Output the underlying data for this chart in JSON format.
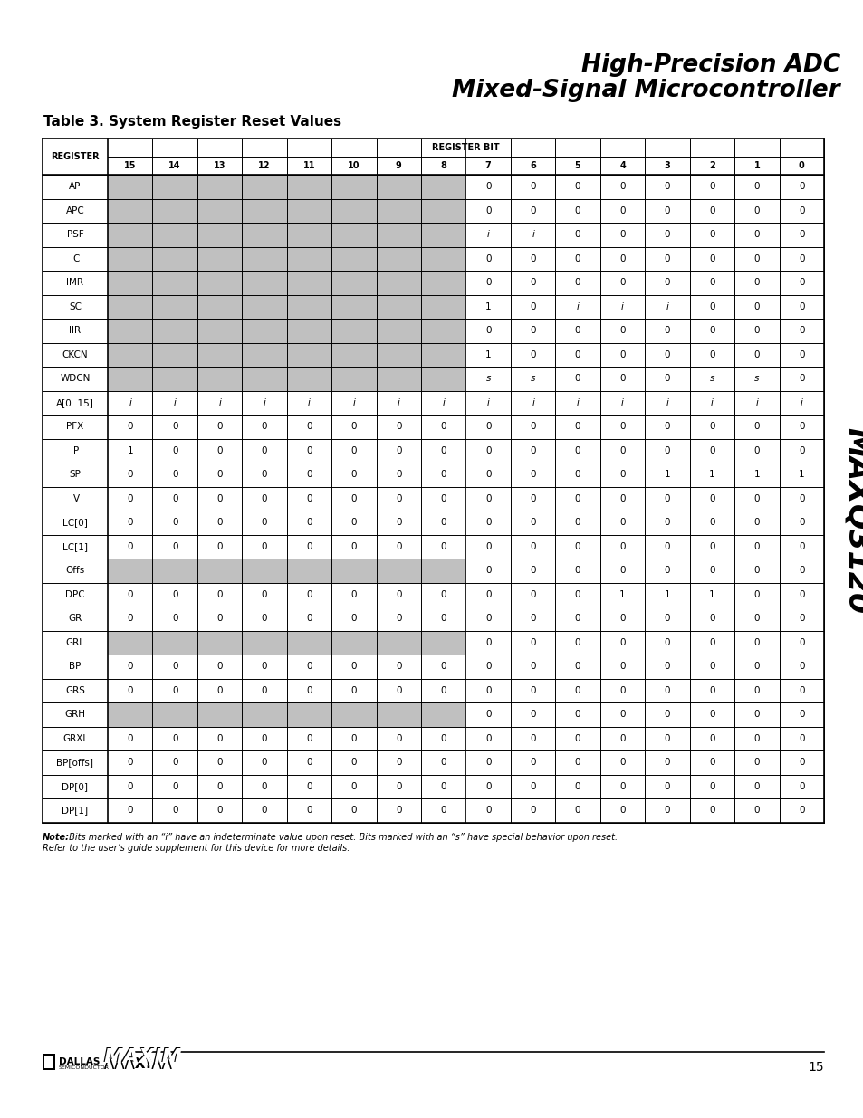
{
  "title_line1": "High-Precision ADC",
  "title_line2": "Mixed-Signal Microcontroller",
  "table_title": "Table 3. System Register Reset Values",
  "side_text": "MAXQ3120",
  "note_bold": "Note:",
  "note_rest1": " Bits marked with an “i” have an indeterminate value upon reset. Bits marked with an “s” have special behavior upon reset.",
  "note_line2": "Refer to the user’s guide supplement for this device for more details.",
  "page_number": "15",
  "register_bit_header": "REGISTER BIT",
  "registers": [
    {
      "name": "AP",
      "bits": [
        "",
        "",
        "",
        "",
        "",
        "",
        "",
        "",
        "0",
        "0",
        "0",
        "0",
        "0",
        "0",
        "0",
        "0"
      ],
      "gray": true
    },
    {
      "name": "APC",
      "bits": [
        "",
        "",
        "",
        "",
        "",
        "",
        "",
        "",
        "0",
        "0",
        "0",
        "0",
        "0",
        "0",
        "0",
        "0"
      ],
      "gray": true
    },
    {
      "name": "PSF",
      "bits": [
        "",
        "",
        "",
        "",
        "",
        "",
        "",
        "",
        "i",
        "i",
        "0",
        "0",
        "0",
        "0",
        "0",
        "0"
      ],
      "gray": true
    },
    {
      "name": "IC",
      "bits": [
        "",
        "",
        "",
        "",
        "",
        "",
        "",
        "",
        "0",
        "0",
        "0",
        "0",
        "0",
        "0",
        "0",
        "0"
      ],
      "gray": true
    },
    {
      "name": "IMR",
      "bits": [
        "",
        "",
        "",
        "",
        "",
        "",
        "",
        "",
        "0",
        "0",
        "0",
        "0",
        "0",
        "0",
        "0",
        "0"
      ],
      "gray": true
    },
    {
      "name": "SC",
      "bits": [
        "",
        "",
        "",
        "",
        "",
        "",
        "",
        "",
        "1",
        "0",
        "i",
        "i",
        "i",
        "0",
        "0",
        "0"
      ],
      "gray": true
    },
    {
      "name": "IIR",
      "bits": [
        "",
        "",
        "",
        "",
        "",
        "",
        "",
        "",
        "0",
        "0",
        "0",
        "0",
        "0",
        "0",
        "0",
        "0"
      ],
      "gray": true
    },
    {
      "name": "CKCN",
      "bits": [
        "",
        "",
        "",
        "",
        "",
        "",
        "",
        "",
        "1",
        "0",
        "0",
        "0",
        "0",
        "0",
        "0",
        "0"
      ],
      "gray": true
    },
    {
      "name": "WDCN",
      "bits": [
        "",
        "",
        "",
        "",
        "",
        "",
        "",
        "",
        "s",
        "s",
        "0",
        "0",
        "0",
        "s",
        "s",
        "0"
      ],
      "gray": true
    },
    {
      "name": "A[0..15]",
      "bits": [
        "i",
        "i",
        "i",
        "i",
        "i",
        "i",
        "i",
        "i",
        "i",
        "i",
        "i",
        "i",
        "i",
        "i",
        "i",
        "i"
      ],
      "gray": false
    },
    {
      "name": "PFX",
      "bits": [
        "0",
        "0",
        "0",
        "0",
        "0",
        "0",
        "0",
        "0",
        "0",
        "0",
        "0",
        "0",
        "0",
        "0",
        "0",
        "0"
      ],
      "gray": false
    },
    {
      "name": "IP",
      "bits": [
        "1",
        "0",
        "0",
        "0",
        "0",
        "0",
        "0",
        "0",
        "0",
        "0",
        "0",
        "0",
        "0",
        "0",
        "0",
        "0"
      ],
      "gray": false
    },
    {
      "name": "SP",
      "bits": [
        "0",
        "0",
        "0",
        "0",
        "0",
        "0",
        "0",
        "0",
        "0",
        "0",
        "0",
        "0",
        "1",
        "1",
        "1",
        "1"
      ],
      "gray": false
    },
    {
      "name": "IV",
      "bits": [
        "0",
        "0",
        "0",
        "0",
        "0",
        "0",
        "0",
        "0",
        "0",
        "0",
        "0",
        "0",
        "0",
        "0",
        "0",
        "0"
      ],
      "gray": false
    },
    {
      "name": "LC[0]",
      "bits": [
        "0",
        "0",
        "0",
        "0",
        "0",
        "0",
        "0",
        "0",
        "0",
        "0",
        "0",
        "0",
        "0",
        "0",
        "0",
        "0"
      ],
      "gray": false
    },
    {
      "name": "LC[1]",
      "bits": [
        "0",
        "0",
        "0",
        "0",
        "0",
        "0",
        "0",
        "0",
        "0",
        "0",
        "0",
        "0",
        "0",
        "0",
        "0",
        "0"
      ],
      "gray": false
    },
    {
      "name": "Offs",
      "bits": [
        "",
        "",
        "",
        "",
        "",
        "",
        "",
        "",
        "0",
        "0",
        "0",
        "0",
        "0",
        "0",
        "0",
        "0"
      ],
      "gray": true
    },
    {
      "name": "DPC",
      "bits": [
        "0",
        "0",
        "0",
        "0",
        "0",
        "0",
        "0",
        "0",
        "0",
        "0",
        "0",
        "1",
        "1",
        "1",
        "0",
        "0"
      ],
      "gray": false
    },
    {
      "name": "GR",
      "bits": [
        "0",
        "0",
        "0",
        "0",
        "0",
        "0",
        "0",
        "0",
        "0",
        "0",
        "0",
        "0",
        "0",
        "0",
        "0",
        "0"
      ],
      "gray": false
    },
    {
      "name": "GRL",
      "bits": [
        "",
        "",
        "",
        "",
        "",
        "",
        "",
        "",
        "0",
        "0",
        "0",
        "0",
        "0",
        "0",
        "0",
        "0"
      ],
      "gray": true
    },
    {
      "name": "BP",
      "bits": [
        "0",
        "0",
        "0",
        "0",
        "0",
        "0",
        "0",
        "0",
        "0",
        "0",
        "0",
        "0",
        "0",
        "0",
        "0",
        "0"
      ],
      "gray": false
    },
    {
      "name": "GRS",
      "bits": [
        "0",
        "0",
        "0",
        "0",
        "0",
        "0",
        "0",
        "0",
        "0",
        "0",
        "0",
        "0",
        "0",
        "0",
        "0",
        "0"
      ],
      "gray": false
    },
    {
      "name": "GRH",
      "bits": [
        "",
        "",
        "",
        "",
        "",
        "",
        "",
        "",
        "0",
        "0",
        "0",
        "0",
        "0",
        "0",
        "0",
        "0"
      ],
      "gray": true
    },
    {
      "name": "GRXL",
      "bits": [
        "0",
        "0",
        "0",
        "0",
        "0",
        "0",
        "0",
        "0",
        "0",
        "0",
        "0",
        "0",
        "0",
        "0",
        "0",
        "0"
      ],
      "gray": false
    },
    {
      "name": "BP[offs]",
      "bits": [
        "0",
        "0",
        "0",
        "0",
        "0",
        "0",
        "0",
        "0",
        "0",
        "0",
        "0",
        "0",
        "0",
        "0",
        "0",
        "0"
      ],
      "gray": false
    },
    {
      "name": "DP[0]",
      "bits": [
        "0",
        "0",
        "0",
        "0",
        "0",
        "0",
        "0",
        "0",
        "0",
        "0",
        "0",
        "0",
        "0",
        "0",
        "0",
        "0"
      ],
      "gray": false
    },
    {
      "name": "DP[1]",
      "bits": [
        "0",
        "0",
        "0",
        "0",
        "0",
        "0",
        "0",
        "0",
        "0",
        "0",
        "0",
        "0",
        "0",
        "0",
        "0",
        "0"
      ],
      "gray": false
    }
  ],
  "gray_color": "#c0c0c0",
  "bit_nums": [
    "15",
    "14",
    "13",
    "12",
    "11",
    "10",
    "9",
    "8",
    "7",
    "6",
    "5",
    "4",
    "3",
    "2",
    "1",
    "0"
  ]
}
